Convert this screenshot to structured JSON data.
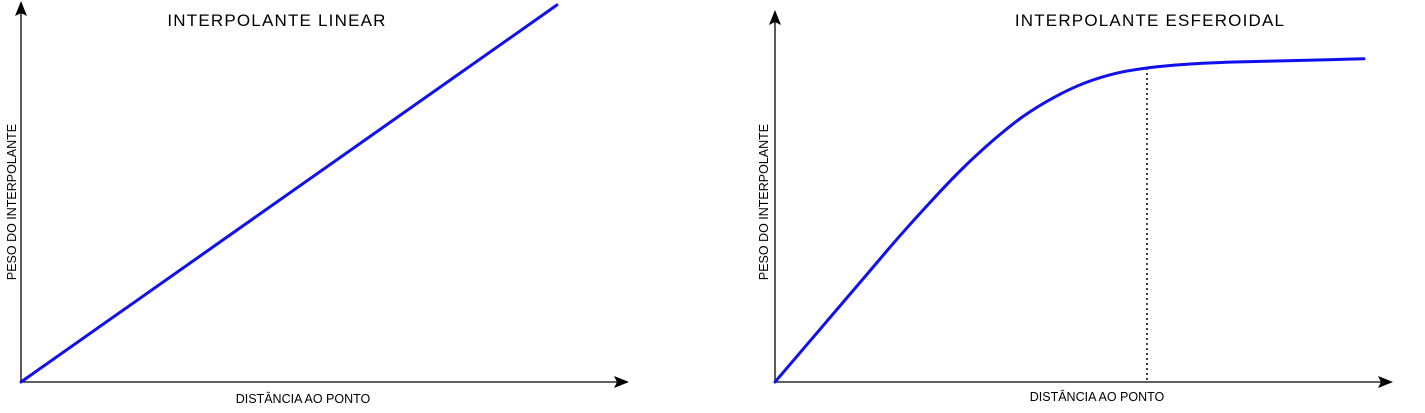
{
  "chart_data": [
    {
      "type": "line",
      "title": "INTERPOLANTE LINEAR",
      "xlabel": "DISTÂNCIA AO PONTO",
      "ylabel": "PESO DO INTERPOLANTE",
      "grid": false,
      "axes_arrows": true,
      "line_color": "#1010ee",
      "xlim": [
        0,
        1
      ],
      "ylim": [
        0,
        1
      ],
      "x": [
        0,
        0.88
      ],
      "y": [
        0,
        1.0
      ]
    },
    {
      "type": "line",
      "title": "INTERPOLANTE ESFEROIDAL",
      "xlabel": "DISTÂNCIA AO PONTO",
      "ylabel": "PESO DO INTERPOLANTE",
      "grid": false,
      "axes_arrows": true,
      "line_color": "#1010ee",
      "xlim": [
        0,
        1
      ],
      "ylim": [
        0,
        1
      ],
      "x": [
        0,
        0.05,
        0.1,
        0.15,
        0.2,
        0.25,
        0.3,
        0.35,
        0.4,
        0.45,
        0.5,
        0.55,
        0.6,
        0.65,
        0.7,
        0.75,
        0.8,
        0.85,
        0.9,
        0.95
      ],
      "y": [
        0,
        0.095,
        0.19,
        0.285,
        0.38,
        0.47,
        0.555,
        0.63,
        0.695,
        0.745,
        0.783,
        0.808,
        0.822,
        0.83,
        0.835,
        0.838,
        0.84,
        0.842,
        0.844,
        0.846
      ],
      "range_marker_x": 0.6,
      "range_marker_style": "dotted"
    }
  ]
}
